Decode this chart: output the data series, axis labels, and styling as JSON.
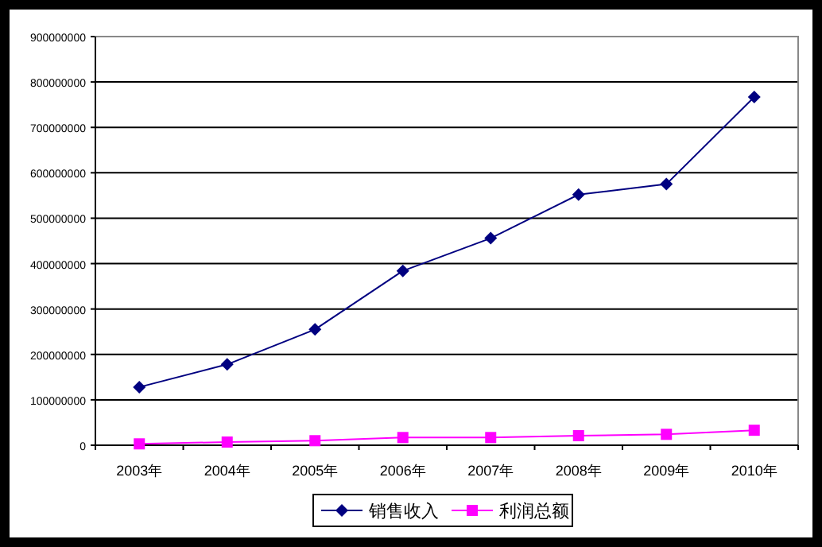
{
  "chart_data": {
    "type": "line",
    "categories": [
      "2003年",
      "2004年",
      "2005年",
      "2006年",
      "2007年",
      "2008年",
      "2009年",
      "2010年"
    ],
    "series": [
      {
        "name": "销售收入",
        "color": "#000080",
        "marker": "diamond",
        "values": [
          128000000,
          178000000,
          255000000,
          384000000,
          456000000,
          552000000,
          575000000,
          767000000
        ]
      },
      {
        "name": "利润总额",
        "color": "#ff00ff",
        "marker": "square",
        "values": [
          3000000,
          7000000,
          10000000,
          17000000,
          17000000,
          21000000,
          24000000,
          33000000
        ]
      }
    ],
    "ylim": [
      0,
      900000000
    ],
    "yticks": [
      0,
      100000000,
      200000000,
      300000000,
      400000000,
      500000000,
      600000000,
      700000000,
      800000000,
      900000000
    ],
    "grid": "y",
    "legend": "bottom"
  }
}
